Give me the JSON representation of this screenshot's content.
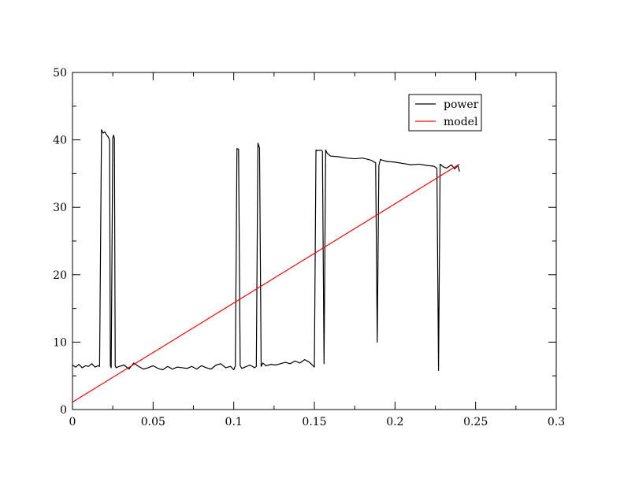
{
  "chart_data": {
    "type": "line",
    "title": "",
    "xlabel": "",
    "ylabel": "",
    "xlim": [
      0,
      0.3
    ],
    "ylim": [
      0,
      50
    ],
    "x_ticks": [
      "0",
      "0.05",
      "0.1",
      "0.15",
      "0.2",
      "0.25",
      "0.3"
    ],
    "y_ticks": [
      "0",
      "10",
      "20",
      "30",
      "40",
      "50"
    ],
    "grid": false,
    "legend_position": "top-right",
    "series": [
      {
        "name": "power",
        "color": "#000000",
        "x": [
          0,
          0.002,
          0.004,
          0.006,
          0.008,
          0.01,
          0.012,
          0.014,
          0.016,
          0.0168,
          0.018,
          0.019,
          0.02,
          0.021,
          0.022,
          0.023,
          0.0235,
          0.024,
          0.025,
          0.0255,
          0.026,
          0.0265,
          0.027,
          0.029,
          0.032,
          0.035,
          0.038,
          0.041,
          0.044,
          0.047,
          0.05,
          0.053,
          0.056,
          0.059,
          0.062,
          0.065,
          0.068,
          0.071,
          0.074,
          0.077,
          0.08,
          0.083,
          0.086,
          0.089,
          0.092,
          0.095,
          0.098,
          0.1,
          0.101,
          0.102,
          0.103,
          0.104,
          0.105,
          0.107,
          0.11,
          0.113,
          0.114,
          0.115,
          0.116,
          0.117,
          0.118,
          0.12,
          0.123,
          0.126,
          0.129,
          0.132,
          0.135,
          0.138,
          0.141,
          0.144,
          0.147,
          0.15,
          0.151,
          0.152,
          0.154,
          0.155,
          0.156,
          0.157,
          0.158,
          0.16,
          0.165,
          0.17,
          0.175,
          0.18,
          0.185,
          0.188,
          0.189,
          0.19,
          0.191,
          0.192,
          0.195,
          0.2,
          0.205,
          0.21,
          0.215,
          0.22,
          0.224,
          0.226,
          0.227,
          0.228,
          0.23,
          0.232,
          0.235,
          0.237,
          0.239,
          0.24
        ],
        "y": [
          6.6,
          6.3,
          6.7,
          6.2,
          6.5,
          6.4,
          6.8,
          6.3,
          6.5,
          6.4,
          41.5,
          41.0,
          41.2,
          40.8,
          40.5,
          40.0,
          6.5,
          6.2,
          40.3,
          40.7,
          40.2,
          6.5,
          6.2,
          6.4,
          6.6,
          6.0,
          6.9,
          6.4,
          6.0,
          6.2,
          6.5,
          6.1,
          5.9,
          6.4,
          6.0,
          6.3,
          6.2,
          6.1,
          6.4,
          6.0,
          6.5,
          6.2,
          6.0,
          6.6,
          6.8,
          6.2,
          6.4,
          5.9,
          6.5,
          38.7,
          38.6,
          6.5,
          6.1,
          6.3,
          6.6,
          6.2,
          6.4,
          39.5,
          38.8,
          6.4,
          6.9,
          6.5,
          6.7,
          6.6,
          6.8,
          7.0,
          6.8,
          7.2,
          6.9,
          7.4,
          7.0,
          6.3,
          38.5,
          38.4,
          38.5,
          38.3,
          6.8,
          38.5,
          38.0,
          37.6,
          37.5,
          37.3,
          37.2,
          37.3,
          37.0,
          36.6,
          10.0,
          36.2,
          37.1,
          37.0,
          36.8,
          36.7,
          36.5,
          36.3,
          36.4,
          36.2,
          36.1,
          35.8,
          5.8,
          36.4,
          36.0,
          35.8,
          36.3,
          35.7,
          36.2,
          35.3
        ]
      },
      {
        "name": "model",
        "color": "#ff0000",
        "x": [
          0,
          0.24
        ],
        "y": [
          1.1,
          36.4
        ]
      }
    ]
  }
}
